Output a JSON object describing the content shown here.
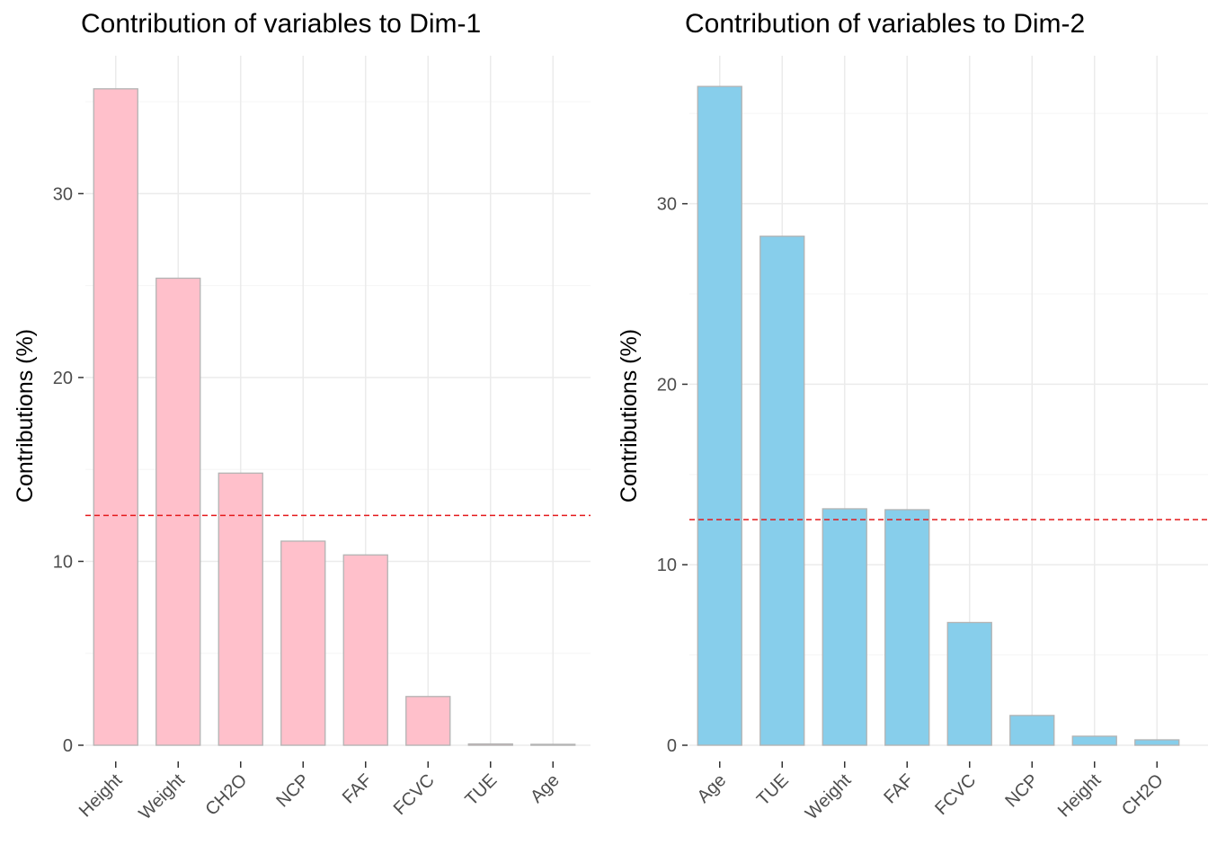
{
  "colors": {
    "grid_major": "#ebebeb",
    "grid_minor": "#f5f5f5",
    "bar_outline": "#b3b3b3",
    "reference_line": "#e41a1c",
    "tick": "#333333"
  },
  "chart_data": [
    {
      "type": "bar",
      "title": "Contribution of variables to Dim-1",
      "xlabel": "",
      "ylabel": "Contributions (%)",
      "categories": [
        "Height",
        "Weight",
        "CH2O",
        "NCP",
        "FAF",
        "FCVC",
        "TUE",
        "Age"
      ],
      "values": [
        35.7,
        25.4,
        14.8,
        11.1,
        10.35,
        2.65,
        0.07,
        0.05
      ],
      "reference_line": 12.5,
      "reference_line_style": "dashed",
      "ylim": [
        0,
        37.5
      ],
      "yticks": [
        0,
        10,
        20,
        30
      ],
      "bar_color": "#ffc0cb",
      "grid": true
    },
    {
      "type": "bar",
      "title": "Contribution of variables to Dim-2",
      "xlabel": "",
      "ylabel": "Contributions (%)",
      "categories": [
        "Age",
        "TUE",
        "Weight",
        "FAF",
        "FCVC",
        "NCP",
        "Height",
        "CH2O"
      ],
      "values": [
        36.5,
        28.2,
        13.1,
        13.05,
        6.8,
        1.65,
        0.5,
        0.3
      ],
      "reference_line": 12.5,
      "reference_line_style": "dashed",
      "ylim": [
        0,
        38.2
      ],
      "yticks": [
        0,
        10,
        20,
        30
      ],
      "bar_color": "#87ceeb",
      "grid": true
    }
  ]
}
